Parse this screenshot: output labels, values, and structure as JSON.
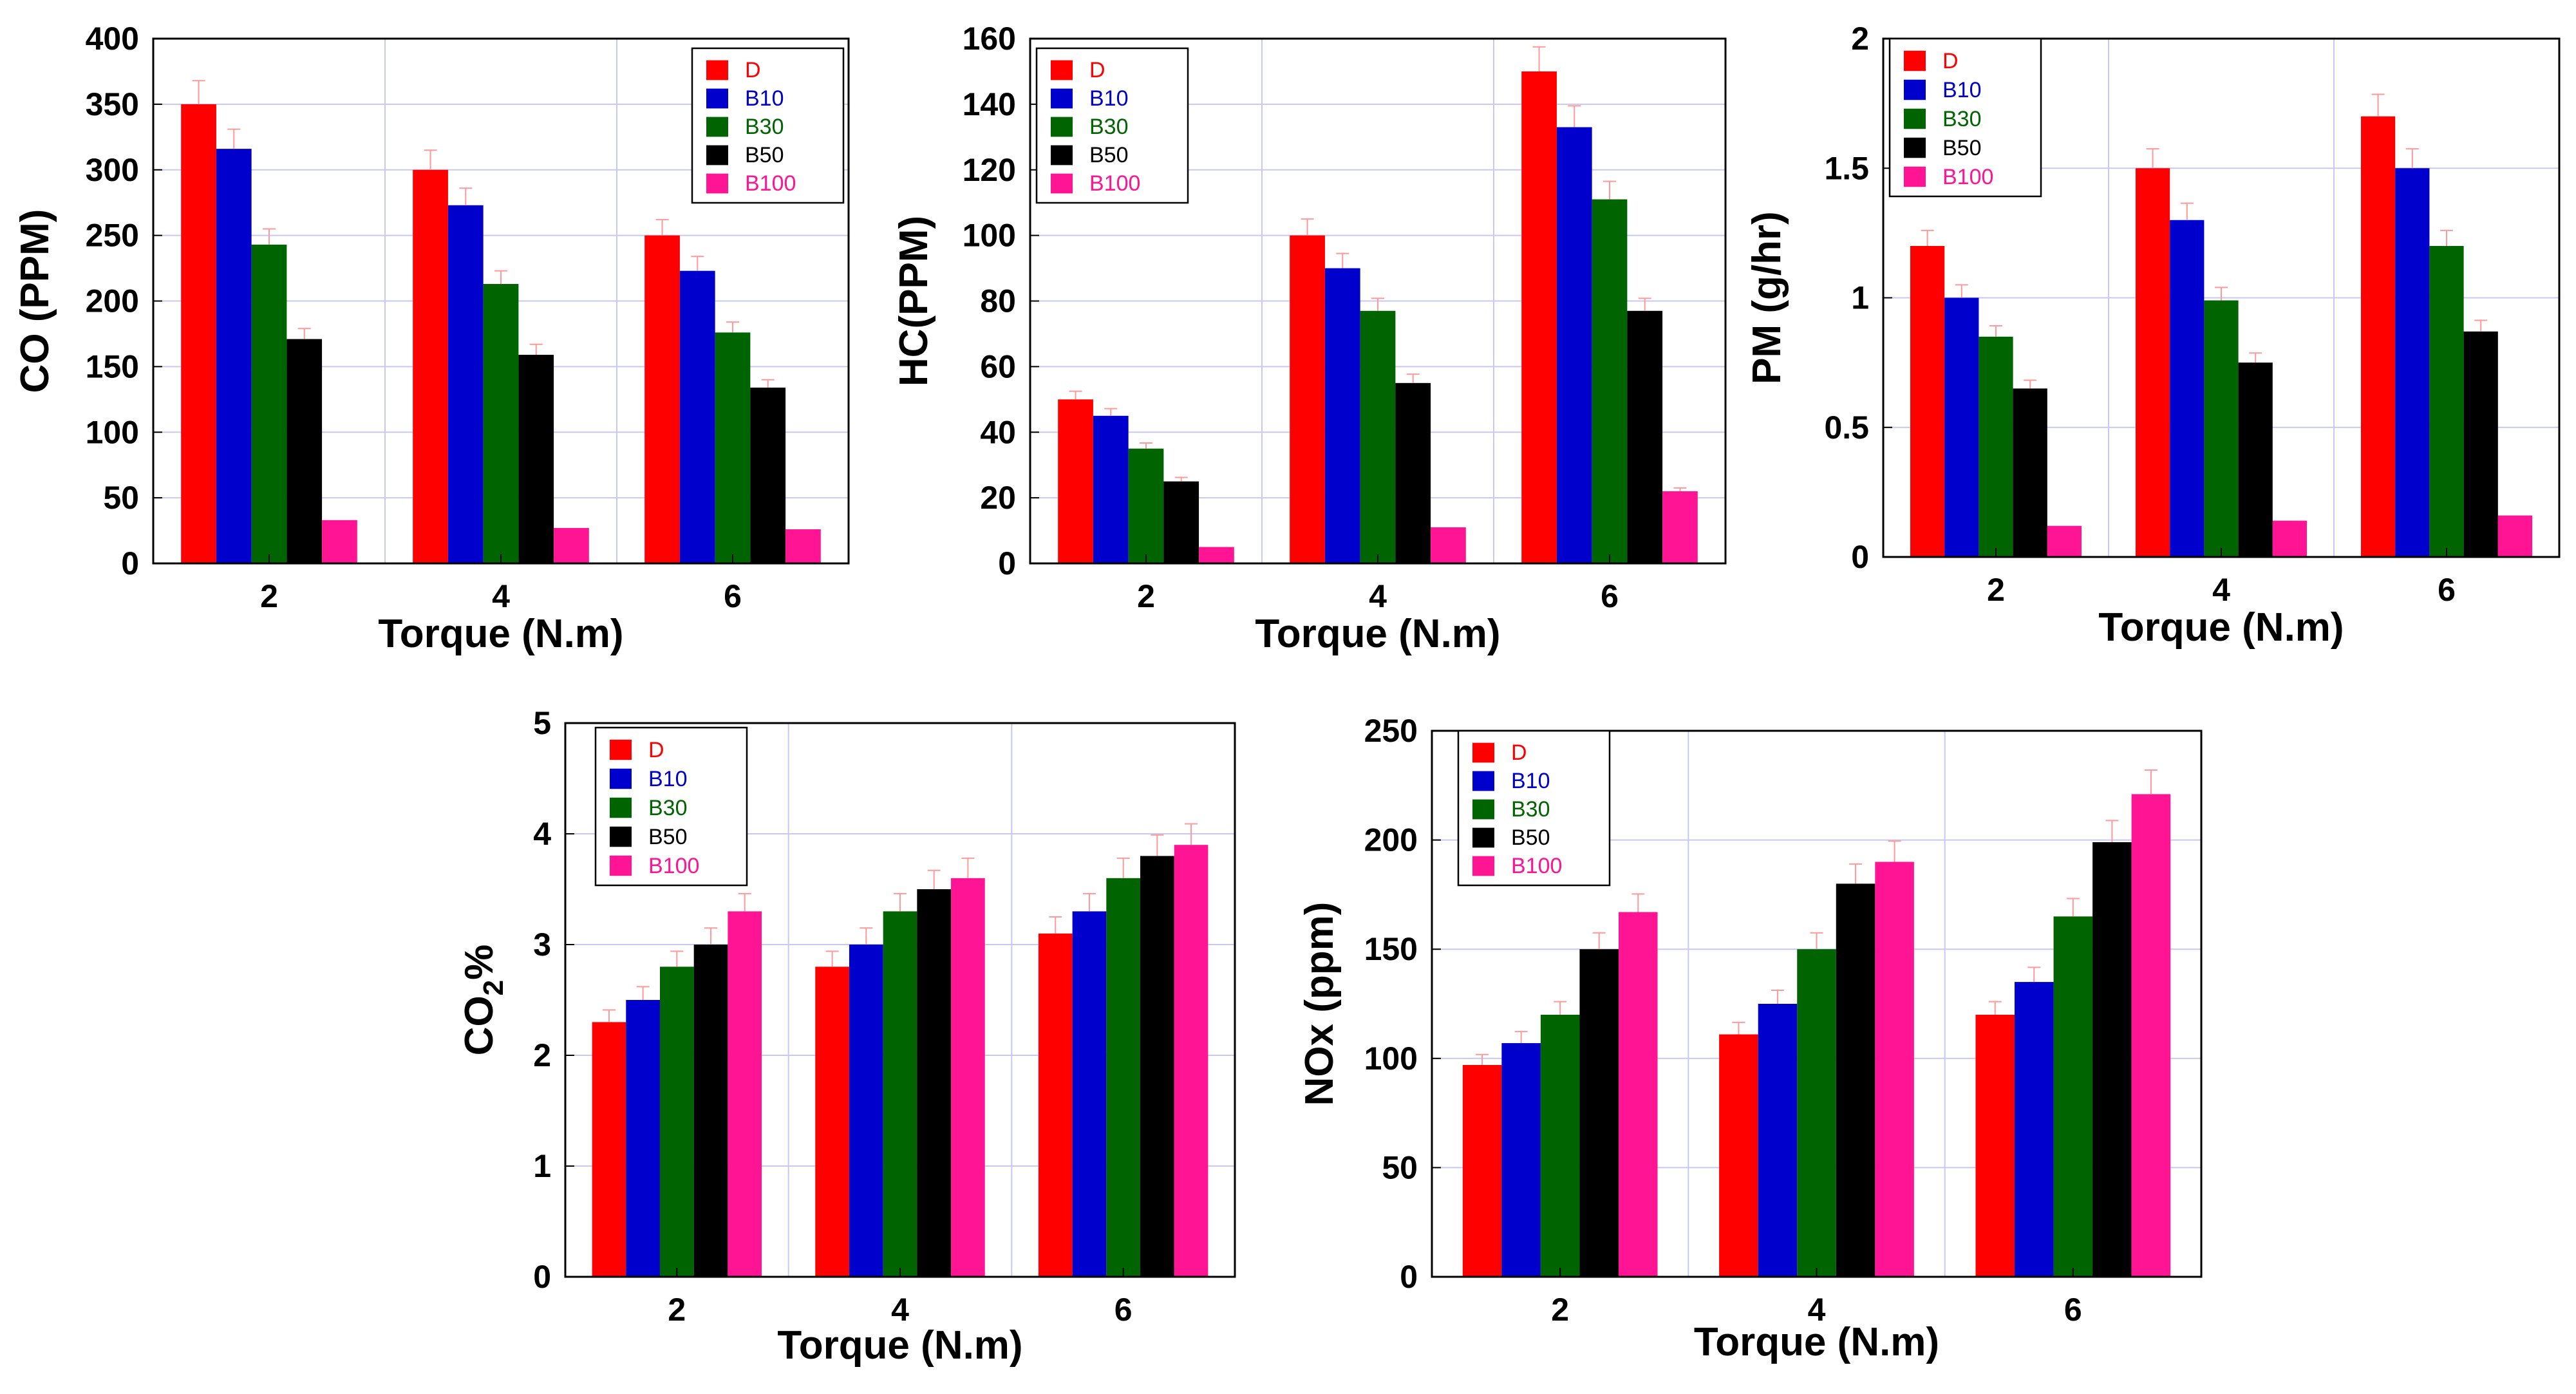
{
  "palette": {
    "D": "#ff0000",
    "B10": "#0000cc",
    "B30": "#006400",
    "B50": "#000000",
    "B100": "#ff1493",
    "grid": "#c8c8f0",
    "error_bar": "#ff9999"
  },
  "chart_data": [
    {
      "id": "co",
      "type": "bar",
      "categories": [
        "2",
        "4",
        "6"
      ],
      "xlabel": "Torque (N.m)",
      "ylabel": "CO (PPM)",
      "ylim": [
        0,
        400
      ],
      "yticks": [
        "0",
        "50",
        "100",
        "150",
        "200",
        "250",
        "300",
        "350",
        "400"
      ],
      "grid": true,
      "legend_placement": "top-right",
      "series": [
        {
          "name": "D",
          "values": [
            350,
            300,
            250
          ],
          "errors": [
            18,
            15,
            12
          ]
        },
        {
          "name": "B10",
          "values": [
            316,
            273,
            223
          ],
          "errors": [
            15,
            13,
            11
          ]
        },
        {
          "name": "B30",
          "values": [
            243,
            213,
            176
          ],
          "errors": [
            12,
            10,
            8
          ]
        },
        {
          "name": "B50",
          "values": [
            171,
            159,
            134
          ],
          "errors": [
            8,
            8,
            6
          ]
        },
        {
          "name": "B100",
          "values": [
            33,
            27,
            26
          ],
          "errors": [
            0,
            0,
            0
          ]
        }
      ]
    },
    {
      "id": "hc",
      "type": "bar",
      "categories": [
        "2",
        "4",
        "6"
      ],
      "xlabel": "Torque (N.m)",
      "ylabel": "HC(PPM)",
      "ylim": [
        0,
        160
      ],
      "yticks": [
        "0",
        "20",
        "40",
        "60",
        "80",
        "100",
        "120",
        "140",
        "160"
      ],
      "grid": true,
      "legend_placement": "top-left",
      "series": [
        {
          "name": "D",
          "values": [
            50,
            100,
            150
          ],
          "errors": [
            2.5,
            5,
            7.5
          ]
        },
        {
          "name": "B10",
          "values": [
            45,
            90,
            133
          ],
          "errors": [
            2.2,
            4.5,
            6.5
          ]
        },
        {
          "name": "B30",
          "values": [
            35,
            77,
            111
          ],
          "errors": [
            1.7,
            3.8,
            5.5
          ]
        },
        {
          "name": "B50",
          "values": [
            25,
            55,
            77
          ],
          "errors": [
            1.2,
            2.7,
            3.8
          ]
        },
        {
          "name": "B100",
          "values": [
            5,
            11,
            22
          ],
          "errors": [
            0,
            0,
            1
          ]
        }
      ]
    },
    {
      "id": "pm",
      "type": "bar",
      "categories": [
        "2",
        "4",
        "6"
      ],
      "xlabel": "Torque (N.m)",
      "ylabel": "PM (g/hr)",
      "ylim": [
        0,
        2
      ],
      "yticks": [
        "0",
        "0.5",
        "1",
        "1.5",
        "2"
      ],
      "grid": true,
      "legend_placement": "top-left",
      "series": [
        {
          "name": "D",
          "values": [
            1.2,
            1.5,
            1.7
          ],
          "errors": [
            0.06,
            0.075,
            0.085
          ]
        },
        {
          "name": "B10",
          "values": [
            1.0,
            1.3,
            1.5
          ],
          "errors": [
            0.05,
            0.065,
            0.075
          ]
        },
        {
          "name": "B30",
          "values": [
            0.85,
            0.99,
            1.2
          ],
          "errors": [
            0.042,
            0.05,
            0.06
          ]
        },
        {
          "name": "B50",
          "values": [
            0.65,
            0.75,
            0.87
          ],
          "errors": [
            0.032,
            0.037,
            0.043
          ]
        },
        {
          "name": "B100",
          "values": [
            0.12,
            0.14,
            0.16
          ],
          "errors": [
            0,
            0,
            0
          ]
        }
      ]
    },
    {
      "id": "co2",
      "type": "bar",
      "categories": [
        "2",
        "4",
        "6"
      ],
      "xlabel": "Torque (N.m)",
      "ylabel": "CO",
      "ylabel_subscript": "2",
      "ylabel_suffix": "%",
      "ylim": [
        0,
        5
      ],
      "yticks": [
        "0",
        "1",
        "2",
        "3",
        "4",
        "5"
      ],
      "grid": true,
      "legend_placement": "top-left",
      "series": [
        {
          "name": "D",
          "values": [
            2.3,
            2.8,
            3.1
          ],
          "errors": [
            0.11,
            0.14,
            0.15
          ]
        },
        {
          "name": "B10",
          "values": [
            2.5,
            3.0,
            3.3
          ],
          "errors": [
            0.12,
            0.15,
            0.16
          ]
        },
        {
          "name": "B30",
          "values": [
            2.8,
            3.3,
            3.6
          ],
          "errors": [
            0.14,
            0.16,
            0.18
          ]
        },
        {
          "name": "B50",
          "values": [
            3.0,
            3.5,
            3.8
          ],
          "errors": [
            0.15,
            0.17,
            0.19
          ]
        },
        {
          "name": "B100",
          "values": [
            3.3,
            3.6,
            3.9
          ],
          "errors": [
            0.16,
            0.18,
            0.19
          ]
        }
      ]
    },
    {
      "id": "nox",
      "type": "bar",
      "categories": [
        "2",
        "4",
        "6"
      ],
      "xlabel": "Torque (N.m)",
      "ylabel": "NOx (ppm)",
      "ylim": [
        0,
        250
      ],
      "yticks": [
        "0",
        "50",
        "100",
        "150",
        "200",
        "250"
      ],
      "grid": true,
      "legend_placement": "top-left",
      "series": [
        {
          "name": "D",
          "values": [
            97,
            111,
            120
          ],
          "errors": [
            4.8,
            5.5,
            6
          ]
        },
        {
          "name": "B10",
          "values": [
            107,
            125,
            135
          ],
          "errors": [
            5.3,
            6.2,
            6.7
          ]
        },
        {
          "name": "B30",
          "values": [
            120,
            150,
            165
          ],
          "errors": [
            6,
            7.5,
            8.2
          ]
        },
        {
          "name": "B50",
          "values": [
            150,
            180,
            199
          ],
          "errors": [
            7.5,
            9,
            9.9
          ]
        },
        {
          "name": "B100",
          "values": [
            167,
            190,
            221
          ],
          "errors": [
            8.3,
            9.5,
            11
          ]
        }
      ]
    }
  ]
}
